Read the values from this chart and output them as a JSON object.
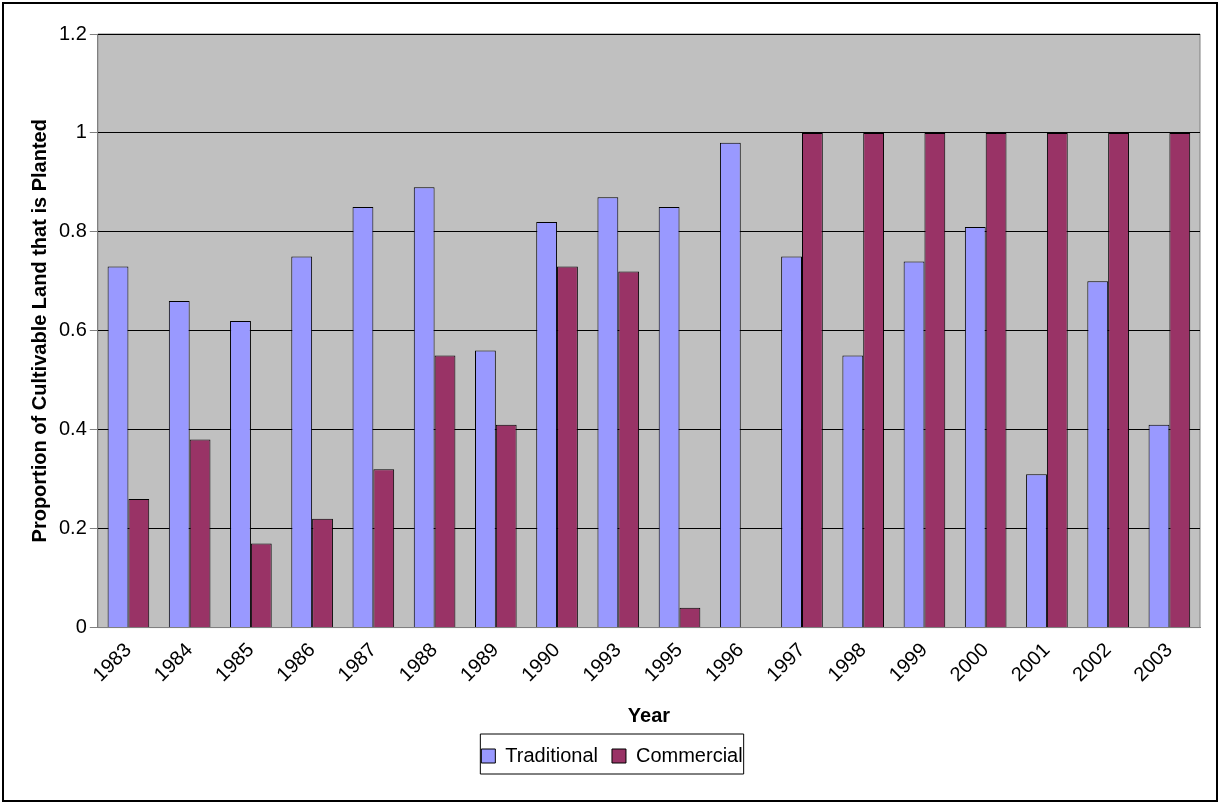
{
  "chart_data": {
    "type": "bar",
    "xlabel": "Year",
    "ylabel": "Proportion of Cultivable Land that is Planted",
    "categories": [
      "1983",
      "1984",
      "1985",
      "1986",
      "1987",
      "1988",
      "1989",
      "1990",
      "1993",
      "1995",
      "1996",
      "1997",
      "1998",
      "1999",
      "2000",
      "2001",
      "2002",
      "2003"
    ],
    "series": [
      {
        "name": "Traditional",
        "color": "#9999ff",
        "values": [
          0.73,
          0.66,
          0.62,
          0.75,
          0.85,
          0.89,
          0.56,
          0.82,
          0.87,
          0.85,
          0.98,
          0.75,
          0.55,
          0.74,
          0.81,
          0.31,
          0.7,
          0.41
        ]
      },
      {
        "name": "Commercial",
        "color": "#993366",
        "values": [
          0.26,
          0.38,
          0.17,
          0.22,
          0.32,
          0.55,
          0.41,
          0.73,
          0.72,
          0.04,
          0,
          1,
          1,
          1,
          1,
          1,
          1,
          1
        ]
      }
    ],
    "ylim": [
      0,
      1.2
    ],
    "yticks": [
      0,
      0.2,
      0.4,
      0.6,
      0.8,
      1,
      1.2
    ],
    "grid": "y",
    "legend": "bottom"
  }
}
